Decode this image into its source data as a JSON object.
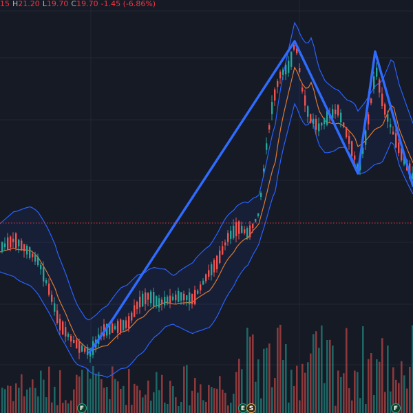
{
  "ohlc_legend": {
    "open_partial": "15",
    "high_label": "H",
    "high": "21.20",
    "low_label": "L",
    "low": "19.70",
    "close_label": "C",
    "close": "19.70",
    "change": "-1.45 (-6.86%)"
  },
  "event_badges": [
    {
      "letter": "F",
      "kind": "dividend"
    },
    {
      "letter": "E",
      "kind": "earnings"
    },
    {
      "letter": "S",
      "kind": "split"
    },
    {
      "letter": "F",
      "kind": "dividend"
    }
  ],
  "colors": {
    "background": "#161a25",
    "grid": "#232735",
    "up": "#26a69a",
    "down": "#ef5350",
    "band_line": "#2962ff",
    "basis_line": "#e07a2f",
    "zigzag": "#2f6bff",
    "price_line": "#f23645"
  },
  "chart_data": {
    "type": "candlestick",
    "x_axis": {
      "labels_visible": false
    },
    "y_axis": {
      "labels_visible": false
    },
    "grid": true,
    "indicators": [
      "bollinger_bands",
      "zigzag",
      "volume"
    ],
    "price_line_level": 324,
    "zigzag": [
      {
        "i": 0,
        "y": 512
      },
      {
        "i": 1,
        "y": 462
      },
      {
        "i": 2,
        "y": 60
      },
      {
        "i": 3,
        "y": 252
      },
      {
        "i": 4,
        "y": 75
      },
      {
        "i": 5,
        "y": 270
      }
    ]
  }
}
